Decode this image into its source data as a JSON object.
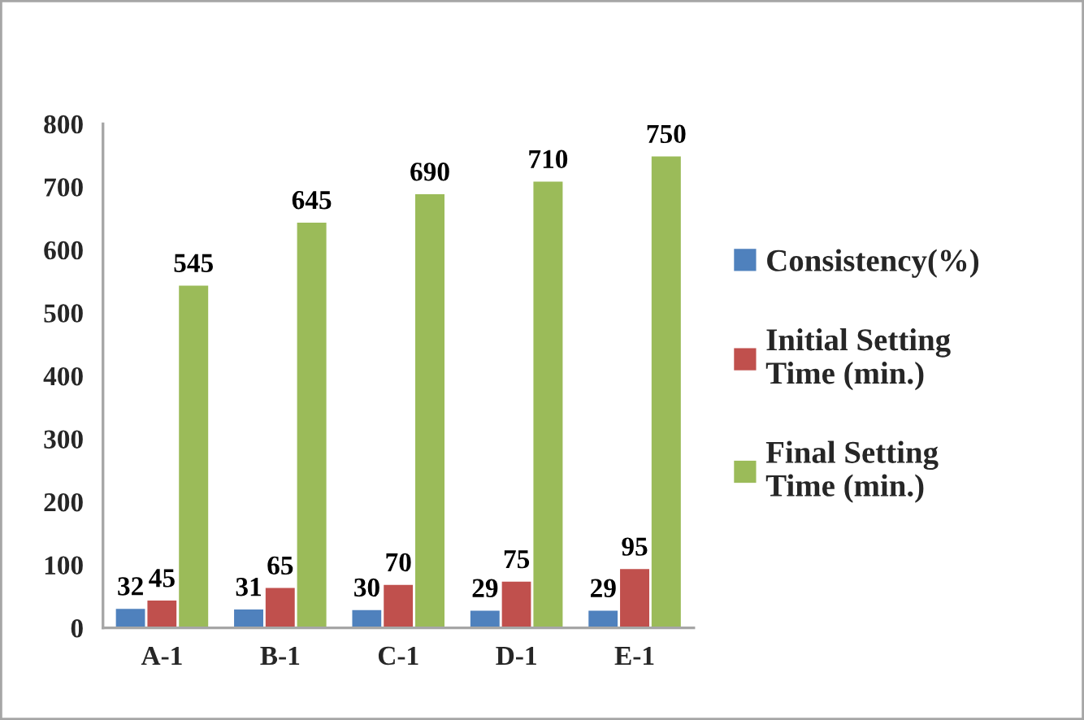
{
  "chart_data": {
    "type": "bar",
    "categories": [
      "A-1",
      "B-1",
      "C-1",
      "D-1",
      "E-1"
    ],
    "series": [
      {
        "name": "Consistency(%)",
        "color": "#4f81bd",
        "values": [
          32,
          31,
          30,
          29,
          29
        ]
      },
      {
        "name": "Initial Setting\nTime (min.)",
        "color": "#c0504d",
        "values": [
          45,
          65,
          70,
          75,
          95
        ]
      },
      {
        "name": "Final Setting\nTime (min.)",
        "color": "#9bbb59",
        "values": [
          545,
          645,
          690,
          710,
          750
        ]
      }
    ],
    "ylim": [
      0,
      800
    ],
    "yticks": [
      0,
      100,
      200,
      300,
      400,
      500,
      600,
      700,
      800
    ],
    "data_labels": true,
    "grid": false,
    "legend": "right"
  }
}
